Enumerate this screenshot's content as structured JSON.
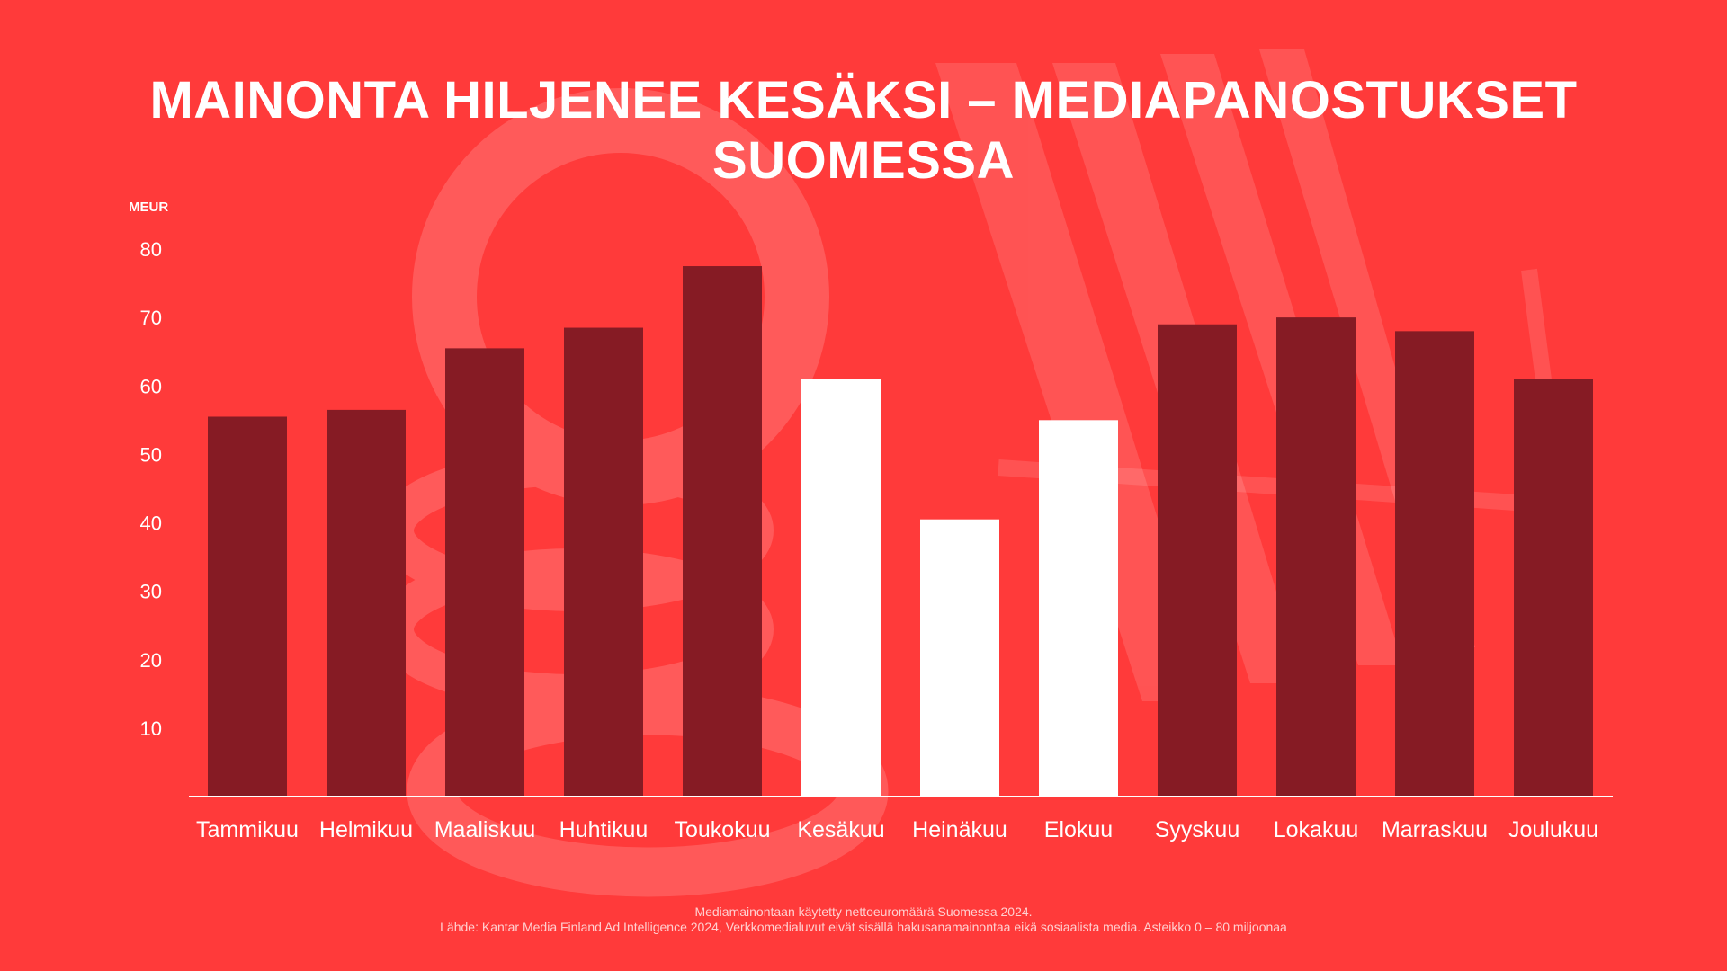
{
  "title": "MAINONTA HILJENEE KESÄKSI – MEDIAPANOSTUKSET SUOMESSA",
  "colors": {
    "background": "#ff3a3a",
    "bar_default": "#861b24",
    "bar_highlight": "#ffffff",
    "text": "#ffffff"
  },
  "chart_data": {
    "type": "bar",
    "ylabel": "MEUR",
    "ylim": [
      0,
      80
    ],
    "yticks": [
      10,
      20,
      30,
      40,
      50,
      60,
      70,
      80
    ],
    "grid": false,
    "categories": [
      "Tammikuu",
      "Helmikuu",
      "Maaliskuu",
      "Huhtikuu",
      "Toukokuu",
      "Kesäkuu",
      "Heinäkuu",
      "Elokuu",
      "Syyskuu",
      "Lokakuu",
      "Marraskuu",
      "Joulukuu"
    ],
    "values": [
      55.5,
      56.5,
      65.5,
      68.5,
      77.5,
      61,
      40.5,
      55,
      69,
      70,
      68,
      61
    ],
    "highlighted": [
      "Kesäkuu",
      "Heinäkuu",
      "Elokuu"
    ]
  },
  "footer": {
    "line1": "Mediamainontaan käytetty nettoeuromäärä Suomessa 2024.",
    "line2": "Lähde: Kantar Media Finland Ad Intelligence 2024, Verkkomedialuvut eivät sisällä hakusanamainontaa eikä sosiaalista media. Asteikko 0 – 80 miljoonaa"
  }
}
